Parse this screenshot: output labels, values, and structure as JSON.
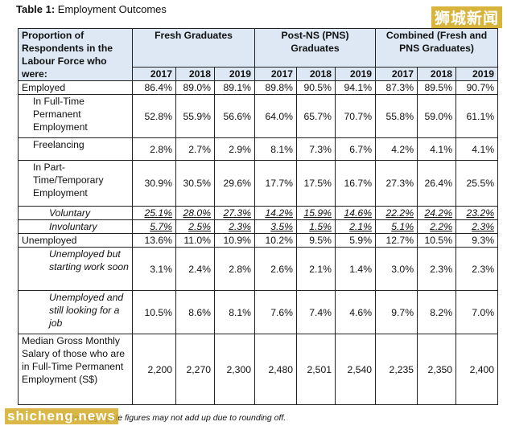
{
  "caption": {
    "bold": "Table 1:",
    "text": " Employment Outcomes"
  },
  "watermark_top": "狮城新闻",
  "watermark_bottom": "shicheng.news",
  "header": {
    "row_label": "Proportion of Respondents in the Labour Force who were:",
    "groups": [
      "Fresh Graduates",
      "Post-NS (PNS) Graduates",
      "Combined (Fresh and PNS Graduates)"
    ],
    "years": [
      "2017",
      "2018",
      "2019",
      "2017",
      "2018",
      "2019",
      "2017",
      "2018",
      "2019"
    ]
  },
  "rows": [
    {
      "label": "Employed",
      "values": [
        "86.4%",
        "89.0%",
        "89.1%",
        "89.8%",
        "90.5%",
        "94.1%",
        "87.3%",
        "89.5%",
        "90.7%"
      ]
    },
    {
      "label": "In Full-Time Permanent Employment",
      "values": [
        "52.8%",
        "55.9%",
        "56.6%",
        "64.0%",
        "65.7%",
        "70.7%",
        "55.8%",
        "59.0%",
        "61.1%"
      ]
    },
    {
      "label": "Freelancing",
      "values": [
        "2.8%",
        "2.7%",
        "2.9%",
        "8.1%",
        "7.3%",
        "6.7%",
        "4.2%",
        "4.1%",
        "4.1%"
      ]
    },
    {
      "label": "In Part-Time/Temporary Employment",
      "values": [
        "30.9%",
        "30.5%",
        "29.6%",
        "17.7%",
        "17.5%",
        "16.7%",
        "27.3%",
        "26.4%",
        "25.5%"
      ]
    },
    {
      "label": "Voluntary",
      "values": [
        "25.1%",
        "28.0%",
        "27.3%",
        "14.2%",
        "15.9%",
        "14.6%",
        "22.2%",
        "24.2%",
        "23.2%"
      ]
    },
    {
      "label": "Involuntary",
      "values": [
        "5.7%",
        "2.5%",
        "2.3%",
        "3.5%",
        "1.5%",
        "2.1%",
        "5.1%",
        "2.2%",
        "2.3%"
      ]
    },
    {
      "label": "Unemployed",
      "values": [
        "13.6%",
        "11.0%",
        "10.9%",
        "10.2%",
        "9.5%",
        "5.9%",
        "12.7%",
        "10.5%",
        "9.3%"
      ]
    },
    {
      "label": "Unemployed but starting work soon",
      "values": [
        "3.1%",
        "2.4%",
        "2.8%",
        "2.6%",
        "2.1%",
        "1.4%",
        "3.0%",
        "2.3%",
        "2.3%"
      ]
    },
    {
      "label": "Unemployed and still looking for a job",
      "values": [
        "10.5%",
        "8.6%",
        "8.1%",
        "7.6%",
        "7.4%",
        "4.6%",
        "9.7%",
        "8.2%",
        "7.0%"
      ]
    },
    {
      "label": "Median Gross Monthly Salary of those who are in Full-Time Permanent Employment (S$)",
      "values": [
        "2,200",
        "2,270",
        "2,300",
        "2,480",
        "2,501",
        "2,540",
        "2,235",
        "2,350",
        "2,400"
      ]
    }
  ],
  "note": "Note: Aggregate figures may not add up due to rounding off."
}
